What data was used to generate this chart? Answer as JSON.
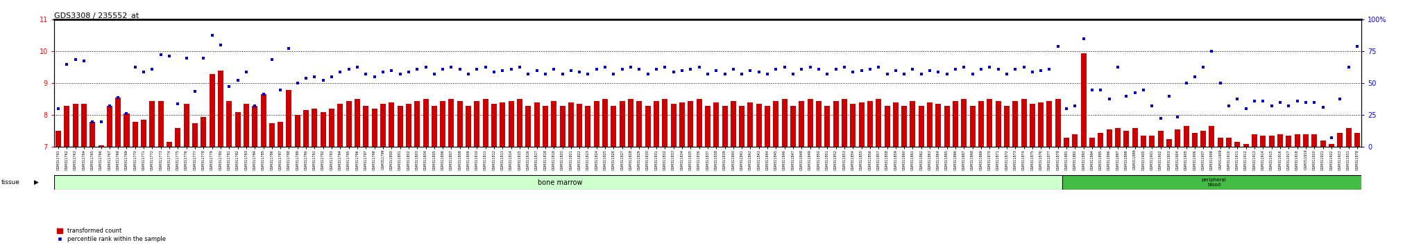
{
  "title": "GDS3308 / 235552_at",
  "left_ylim": [
    7,
    11
  ],
  "right_ylim": [
    0,
    100
  ],
  "left_yticks": [
    7,
    8,
    9,
    10,
    11
  ],
  "right_yticks": [
    0,
    25,
    50,
    75,
    100
  ],
  "right_yticklabels": [
    "0",
    "25",
    "50",
    "75",
    "100%"
  ],
  "bar_color": "#cc0000",
  "dot_color": "#0000cc",
  "bg_color": "#ffffff",
  "tissue_bm_color": "#ccffcc",
  "tissue_pb_color": "#44bb44",
  "tissue_label_bm": "bone marrow",
  "tissue_label_pb": "peripheral\nblood",
  "legend_bar": "transformed count",
  "legend_dot": "percentile rank within the sample",
  "n_bm": 118,
  "n_pb": 35,
  "bm_bars": [
    7.5,
    8.3,
    8.35,
    8.35,
    7.8,
    7.05,
    8.3,
    8.55,
    8.05,
    7.8,
    7.85,
    8.45,
    8.45,
    7.15,
    7.6,
    8.35,
    7.75,
    7.95,
    9.3,
    9.4,
    8.45,
    8.1,
    8.35,
    8.3,
    8.65,
    7.75,
    7.8,
    8.8,
    8.0,
    8.15,
    8.2,
    8.1,
    8.2,
    8.35,
    8.45,
    8.5,
    8.3,
    8.2,
    8.35,
    8.4,
    8.3,
    8.35,
    8.45,
    8.5,
    8.3,
    8.45,
    8.5,
    8.45,
    8.3,
    8.45,
    8.5,
    8.35,
    8.4,
    8.45,
    8.5,
    8.3,
    8.4,
    8.3,
    8.45,
    8.3,
    8.4,
    8.35,
    8.3,
    8.45,
    8.5,
    8.3,
    8.45,
    8.5,
    8.45,
    8.3,
    8.45,
    8.5,
    8.35,
    8.4,
    8.45,
    8.5,
    8.3,
    8.4,
    8.3,
    8.45,
    8.3,
    8.4,
    8.35,
    8.3,
    8.45,
    8.5,
    8.3,
    8.45,
    8.5,
    8.45,
    8.3,
    8.45,
    8.5,
    8.35,
    8.4,
    8.45,
    8.5,
    8.3,
    8.4,
    8.3,
    8.45,
    8.3,
    8.4,
    8.35,
    8.3,
    8.45,
    8.5,
    8.3,
    8.45,
    8.5,
    8.45,
    8.3,
    8.45,
    8.5,
    8.35,
    8.4,
    8.45,
    8.5
  ],
  "bm_dots": [
    8.2,
    9.6,
    9.75,
    9.7,
    7.8,
    7.8,
    8.3,
    8.55,
    8.05,
    9.5,
    9.35,
    9.45,
    9.9,
    9.85,
    8.35,
    9.8,
    8.75,
    9.8,
    10.5,
    10.2,
    8.9,
    9.1,
    9.35,
    8.3,
    8.65,
    9.75,
    8.8,
    10.1,
    9.0,
    9.15,
    9.2,
    9.1,
    9.2,
    9.35,
    9.45,
    9.5,
    9.3,
    9.2,
    9.35,
    9.4,
    9.3,
    9.35,
    9.45,
    9.5,
    9.3,
    9.45,
    9.5,
    9.45,
    9.3,
    9.45,
    9.5,
    9.35,
    9.4,
    9.45,
    9.5,
    9.3,
    9.4,
    9.3,
    9.45,
    9.3,
    9.4,
    9.35,
    9.3,
    9.45,
    9.5,
    9.3,
    9.45,
    9.5,
    9.45,
    9.3,
    9.45,
    9.5,
    9.35,
    9.4,
    9.45,
    9.5,
    9.3,
    9.4,
    9.3,
    9.45,
    9.3,
    9.4,
    9.35,
    9.3,
    9.45,
    9.5,
    9.3,
    9.45,
    9.5,
    9.45,
    9.3,
    9.45,
    9.5,
    9.35,
    9.4,
    9.45,
    9.5,
    9.3,
    9.4,
    9.3,
    9.45,
    9.3,
    9.4,
    9.35,
    9.3,
    9.45,
    9.5,
    9.3,
    9.45,
    9.5,
    9.45,
    9.3,
    9.45,
    9.5,
    9.35,
    9.4,
    9.45,
    10.15
  ],
  "pb_bars": [
    7.3,
    7.4,
    9.95,
    7.3,
    7.45,
    7.55,
    7.6,
    7.5,
    7.6,
    7.35,
    7.35,
    7.5,
    7.25,
    7.55,
    7.65,
    7.45,
    7.5,
    7.65,
    7.3,
    7.3,
    7.15,
    7.1,
    7.4,
    7.35,
    7.35,
    7.4,
    7.35,
    7.4,
    7.4,
    7.4,
    7.2,
    7.1,
    7.45,
    7.6,
    7.45
  ],
  "pb_dots": [
    8.2,
    8.3,
    10.4,
    8.8,
    8.8,
    8.5,
    9.5,
    8.6,
    8.7,
    8.8,
    8.3,
    7.9,
    8.6,
    7.95,
    9.0,
    9.2,
    9.5,
    10.0,
    9.0,
    8.3,
    8.5,
    8.2,
    8.45,
    8.45,
    8.3,
    8.4,
    8.3,
    8.45,
    8.4,
    8.4,
    8.25,
    7.3,
    8.5,
    9.5,
    10.15
  ]
}
